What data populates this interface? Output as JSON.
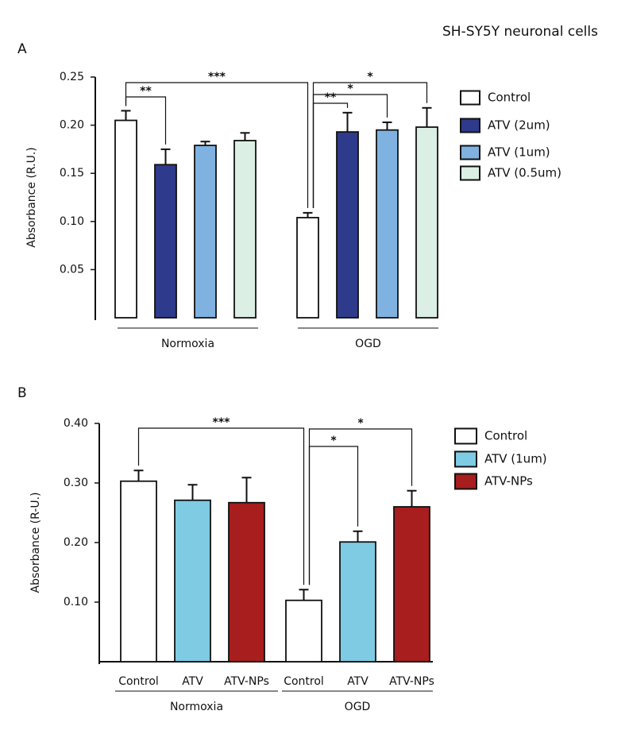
{
  "title": "SH-SY5Y neuronal cells",
  "chart_data": [
    {
      "type": "bar",
      "panel": "A",
      "ylabel": "Absorbance (R.U.)",
      "categories": [
        "Normoxia",
        "OGD"
      ],
      "series": [
        {
          "name": "Control",
          "color": "#ffffff",
          "values": [
            0.205,
            0.104
          ],
          "errors": [
            0.01,
            0.005
          ]
        },
        {
          "name": "ATV (2um)",
          "color": "#2e3a8c",
          "values": [
            0.159,
            0.193
          ],
          "errors": [
            0.016,
            0.02
          ]
        },
        {
          "name": "ATV (1um)",
          "color": "#7fb2e0",
          "values": [
            0.179,
            0.195
          ],
          "errors": [
            0.004,
            0.008
          ]
        },
        {
          "name": "ATV (0.5um)",
          "color": "#dcefe4",
          "values": [
            0.184,
            0.198
          ],
          "errors": [
            0.008,
            0.02
          ]
        }
      ],
      "ylim": [
        0,
        0.25
      ],
      "yticks": [
        0.05,
        {
          "value": 0.1,
          "label": "0.10"
        },
        0.15,
        {
          "value": 0.2,
          "label": "0.20"
        },
        0.25
      ],
      "annotations": [
        "***",
        "**",
        "**",
        "*",
        "*"
      ]
    },
    {
      "type": "bar",
      "panel": "B",
      "ylabel": "Absorbance (R-U.)",
      "categories": [
        "Normoxia",
        "OGD"
      ],
      "bar_labels": [
        "Control",
        "ATV",
        "ATV-NPs"
      ],
      "series": [
        {
          "name": "Control",
          "color": "#ffffff",
          "values": [
            0.303,
            0.103
          ],
          "errors": [
            0.018,
            0.018
          ]
        },
        {
          "name": "ATV (1um)",
          "color": "#7ecbe3",
          "values": [
            0.271,
            0.201
          ],
          "errors": [
            0.026,
            0.018
          ]
        },
        {
          "name": "ATV-NPs",
          "color": "#a81d1d",
          "values": [
            0.267,
            0.26
          ],
          "errors": [
            0.042,
            0.027
          ]
        }
      ],
      "ylim": [
        0,
        0.4
      ],
      "yticks": [
        {
          "value": 0.1,
          "label": "0.10"
        },
        {
          "value": 0.2,
          "label": "0.20"
        },
        {
          "value": 0.3,
          "label": "0.30"
        },
        {
          "value": 0.4,
          "label": "0.40"
        }
      ],
      "annotations": [
        "***",
        "*",
        "*"
      ]
    }
  ]
}
